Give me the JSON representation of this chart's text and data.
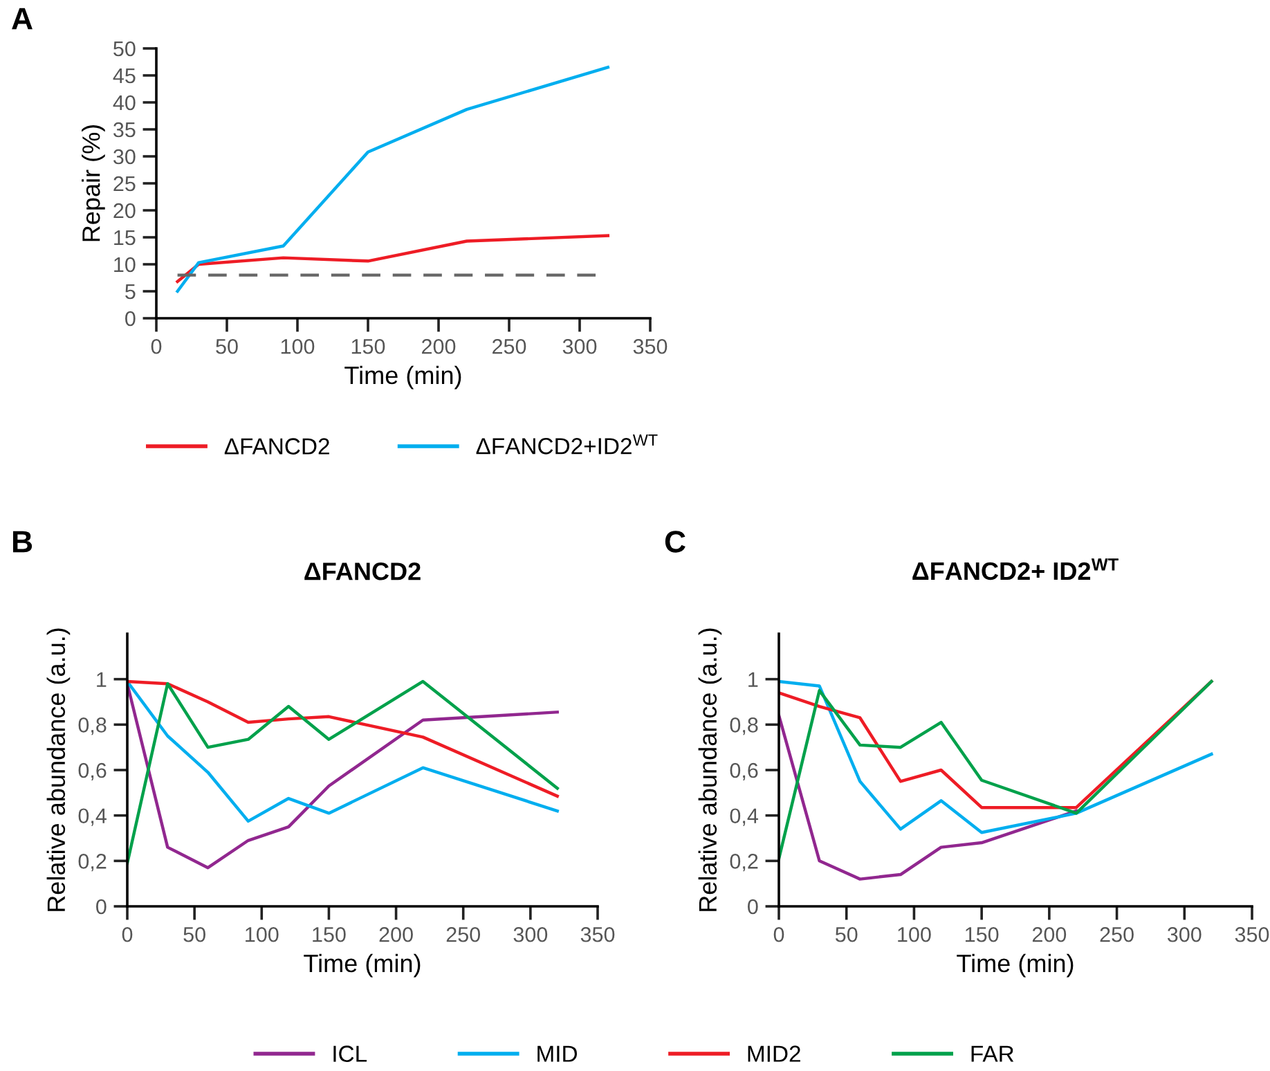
{
  "chart_data": [
    {
      "type": "line",
      "xlabel": "Time (min)",
      "ylabel": "Repair (%)",
      "annotations": [
        "A"
      ],
      "x": [
        15,
        30,
        90,
        150,
        220,
        320
      ],
      "series": [
        {
          "name": "ΔFANCD2",
          "color": "#ee1c25",
          "values": [
            6.8,
            10,
            11.2,
            10.6,
            14.3,
            15.3
          ]
        },
        {
          "name": "ΔFANCD2+ID2$^{WT}$",
          "color": "#00aeef",
          "values": [
            5,
            10.3,
            13.4,
            30.8,
            38.7,
            46.5
          ]
        }
      ],
      "ref_lines": [
        {
          "axis": "y",
          "value": 8,
          "color": "#666666",
          "line_style": "dashed"
        }
      ],
      "xlim": [
        0,
        350
      ],
      "xticks": [
        0,
        50,
        100,
        150,
        200,
        250,
        300,
        350
      ],
      "ylim": [
        0,
        50
      ],
      "yticks": [
        0,
        5,
        10,
        15,
        20,
        25,
        30,
        35,
        40,
        45,
        50
      ],
      "grid": false,
      "legend": "bottom",
      "marker": "none",
      "line_style": "solid"
    },
    {
      "type": "line",
      "title": "ΔFANCD2",
      "xlabel": "Time (min)",
      "ylabel": "Relative abundance (a.u.)",
      "annotations": [
        "B"
      ],
      "x": [
        0,
        30,
        60,
        90,
        120,
        150,
        220,
        320
      ],
      "series": [
        {
          "name": "ICL",
          "color": "#91278f",
          "values": [
            0.98,
            0.26,
            0.17,
            0.29,
            0.35,
            0.53,
            0.82,
            0.855
          ]
        },
        {
          "name": "MID",
          "color": "#00aeef",
          "values": [
            0.99,
            0.75,
            0.59,
            0.375,
            0.475,
            0.41,
            0.61,
            0.42
          ]
        },
        {
          "name": "MID2",
          "color": "#ee1c25",
          "values": [
            0.99,
            0.98,
            0.9,
            0.81,
            0.825,
            0.835,
            0.745,
            0.485
          ]
        },
        {
          "name": "FAR",
          "color": "#00a14b",
          "values": [
            0.19,
            0.98,
            0.7,
            0.735,
            0.88,
            0.735,
            0.99,
            0.52
          ]
        }
      ],
      "xlim": [
        0,
        350
      ],
      "xticks": [
        0,
        50,
        100,
        150,
        200,
        250,
        300,
        350
      ],
      "ylim": [
        0,
        1.2
      ],
      "yticks": [
        0,
        {
          "value": 0.2,
          "label": "0,2"
        },
        {
          "value": 0.4,
          "label": "0,4"
        },
        {
          "value": 0.6,
          "label": "0,6"
        },
        {
          "value": 0.8,
          "label": "0,8"
        },
        1
      ],
      "grid": false,
      "legend": "bottom",
      "marker": "none",
      "line_style": "solid"
    },
    {
      "type": "line",
      "title": "ΔFANCD2+ ID2$^{WT}$",
      "xlabel": "Time (min)",
      "ylabel": "Relative abundance (a.u.)",
      "annotations": [
        "C"
      ],
      "x": [
        0,
        30,
        60,
        90,
        120,
        150,
        220,
        320
      ],
      "series": [
        {
          "color": "#91278f",
          "values": [
            0.84,
            0.2,
            0.12,
            0.14,
            0.26,
            0.28,
            0.42,
            null
          ]
        },
        {
          "color": "#00aeef",
          "values": [
            0.99,
            0.97,
            0.55,
            0.34,
            0.465,
            0.325,
            0.41,
            0.67
          ]
        },
        {
          "color": "#ee1c25",
          "values": [
            0.94,
            0.88,
            0.83,
            0.55,
            0.6,
            0.435,
            0.435,
            0.99
          ]
        },
        {
          "color": "#00a14b",
          "values": [
            0.21,
            0.95,
            0.71,
            0.7,
            0.81,
            0.555,
            0.41,
            0.99
          ]
        }
      ],
      "xlim": [
        0,
        350
      ],
      "xticks": [
        0,
        50,
        100,
        150,
        200,
        250,
        300,
        350
      ],
      "ylim": [
        0,
        1.2
      ],
      "yticks": [
        0,
        {
          "value": 0.2,
          "label": "0,2"
        },
        {
          "value": 0.4,
          "label": "0,4"
        },
        {
          "value": 0.6,
          "label": "0,6"
        },
        {
          "value": 0.8,
          "label": "0,8"
        },
        1
      ],
      "grid": false,
      "marker": "none",
      "line_style": "solid"
    }
  ]
}
